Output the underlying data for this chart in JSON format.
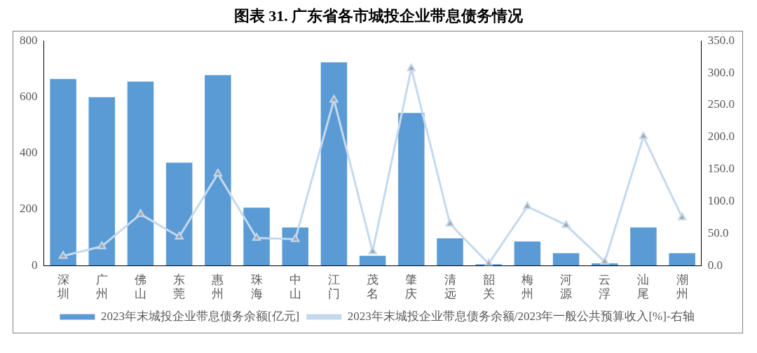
{
  "chart_data": {
    "type": "bar",
    "title": "图表 31.  广东省各市城投企业带息债务情况",
    "categories": [
      "深圳",
      "广州",
      "佛山",
      "东莞",
      "惠州",
      "珠海",
      "中山",
      "江门",
      "茂名",
      "肇庆",
      "清远",
      "韶关",
      "梅州",
      "河源",
      "云浮",
      "汕尾",
      "潮州"
    ],
    "series": [
      {
        "name": "2023年末城投企业带息债务余额[亿元]",
        "color": "#5b9bd5",
        "values": [
          664,
          599,
          655,
          366,
          678,
          206,
          136,
          723,
          35,
          543,
          97,
          5,
          86,
          44,
          8,
          136,
          44
        ]
      },
      {
        "name": "2023年末城投企业带息债务余额/2023年一般公共预算收入[%]-右轴",
        "type": "line",
        "axis": "y2",
        "color": "#c5d9ee",
        "marker": "triangle",
        "values": [
          15,
          30,
          80,
          45,
          143,
          43,
          41,
          258,
          22,
          307,
          65,
          3,
          92,
          63,
          6,
          201,
          75
        ]
      }
    ],
    "ylim": [
      0,
      800
    ],
    "yticks": [
      0,
      200,
      400,
      600,
      800
    ],
    "y2lim": [
      0,
      350
    ],
    "y2ticks": [
      {
        "value": 0,
        "label": "0.0"
      },
      {
        "value": 50,
        "label": "50.0"
      },
      {
        "value": 100,
        "label": "100.0"
      },
      {
        "value": 150,
        "label": "150.0"
      },
      {
        "value": 200,
        "label": "200.0"
      },
      {
        "value": 250,
        "label": "250.0"
      },
      {
        "value": 300,
        "label": "300.0"
      },
      {
        "value": 350,
        "label": "350.0"
      }
    ],
    "grid": false,
    "legend": "bottom"
  }
}
